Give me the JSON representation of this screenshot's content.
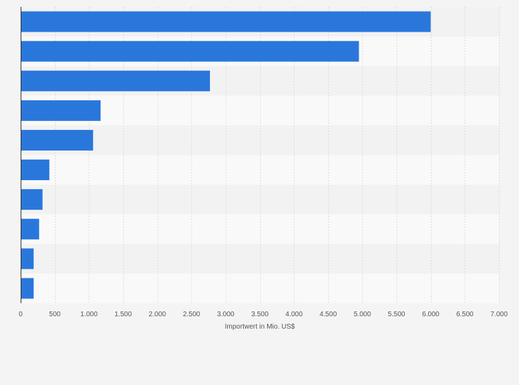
{
  "chart_data": {
    "type": "bar",
    "orientation": "horizontal",
    "categories": [
      "",
      "",
      "",
      "",
      "",
      "",
      "",
      "",
      "",
      ""
    ],
    "values": [
      6000,
      4950,
      2770,
      1170,
      1060,
      420,
      320,
      270,
      190,
      190
    ],
    "xlabel": "Importwert in Mio. US$",
    "xlim": [
      0,
      7000
    ],
    "ticks": [
      {
        "value": 0,
        "label": "0"
      },
      {
        "value": 500,
        "label": "500"
      },
      {
        "value": 1000,
        "label": "1.000"
      },
      {
        "value": 1500,
        "label": "1.500"
      },
      {
        "value": 2000,
        "label": "2.000"
      },
      {
        "value": 2500,
        "label": "2.500"
      },
      {
        "value": 3000,
        "label": "3.000"
      },
      {
        "value": 3500,
        "label": "3.500"
      },
      {
        "value": 4000,
        "label": "4.000"
      },
      {
        "value": 4500,
        "label": "4.500"
      },
      {
        "value": 5000,
        "label": "5.000"
      },
      {
        "value": 5500,
        "label": "5.500"
      },
      {
        "value": 6000,
        "label": "6.000"
      },
      {
        "value": 6500,
        "label": "6.500"
      },
      {
        "value": 7000,
        "label": "7.000"
      }
    ],
    "grid": true,
    "legend": "none",
    "colors": {
      "bar": "#2a77dc",
      "band_light": "#f9f9f9",
      "band_dark": "#f2f2f2",
      "grid": "#dcdcdc",
      "axis": "#333333",
      "background": "#f4f4f4"
    }
  }
}
